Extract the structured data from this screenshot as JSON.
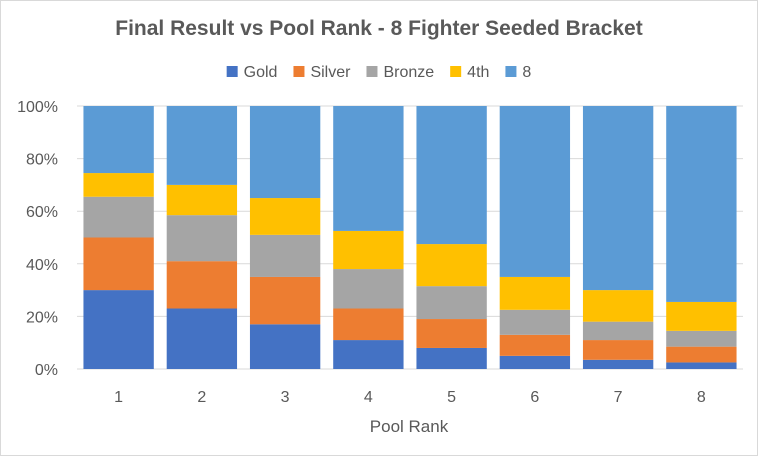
{
  "chart_data": {
    "type": "bar",
    "stacked": true,
    "percent": true,
    "title": "Final Result vs Pool Rank - 8 Fighter Seeded Bracket",
    "xlabel": "Pool Rank",
    "ylabel": "",
    "categories": [
      "1",
      "2",
      "3",
      "4",
      "5",
      "6",
      "7",
      "8"
    ],
    "yticks": [
      "0%",
      "20%",
      "40%",
      "60%",
      "80%",
      "100%"
    ],
    "ylim": [
      0,
      100
    ],
    "grid": true,
    "legend_position": "top",
    "series": [
      {
        "name": "Gold",
        "color": "#4472C4",
        "values": [
          30,
          23,
          17,
          11,
          8,
          5,
          3.5,
          2.5
        ]
      },
      {
        "name": "Silver",
        "color": "#ED7D31",
        "values": [
          20,
          18,
          18,
          12,
          11,
          8,
          7.5,
          6
        ]
      },
      {
        "name": "Bronze",
        "color": "#A5A5A5",
        "values": [
          15.5,
          17.5,
          16,
          15,
          12.5,
          9.5,
          7,
          6
        ]
      },
      {
        "name": "4th",
        "color": "#FFC000",
        "values": [
          9,
          11.5,
          14,
          14.5,
          16,
          12.5,
          12,
          11
        ]
      },
      {
        "name": "8",
        "color": "#5B9BD5",
        "values": [
          25.5,
          30,
          35,
          47.5,
          52.5,
          65,
          70,
          74.5
        ]
      }
    ]
  }
}
